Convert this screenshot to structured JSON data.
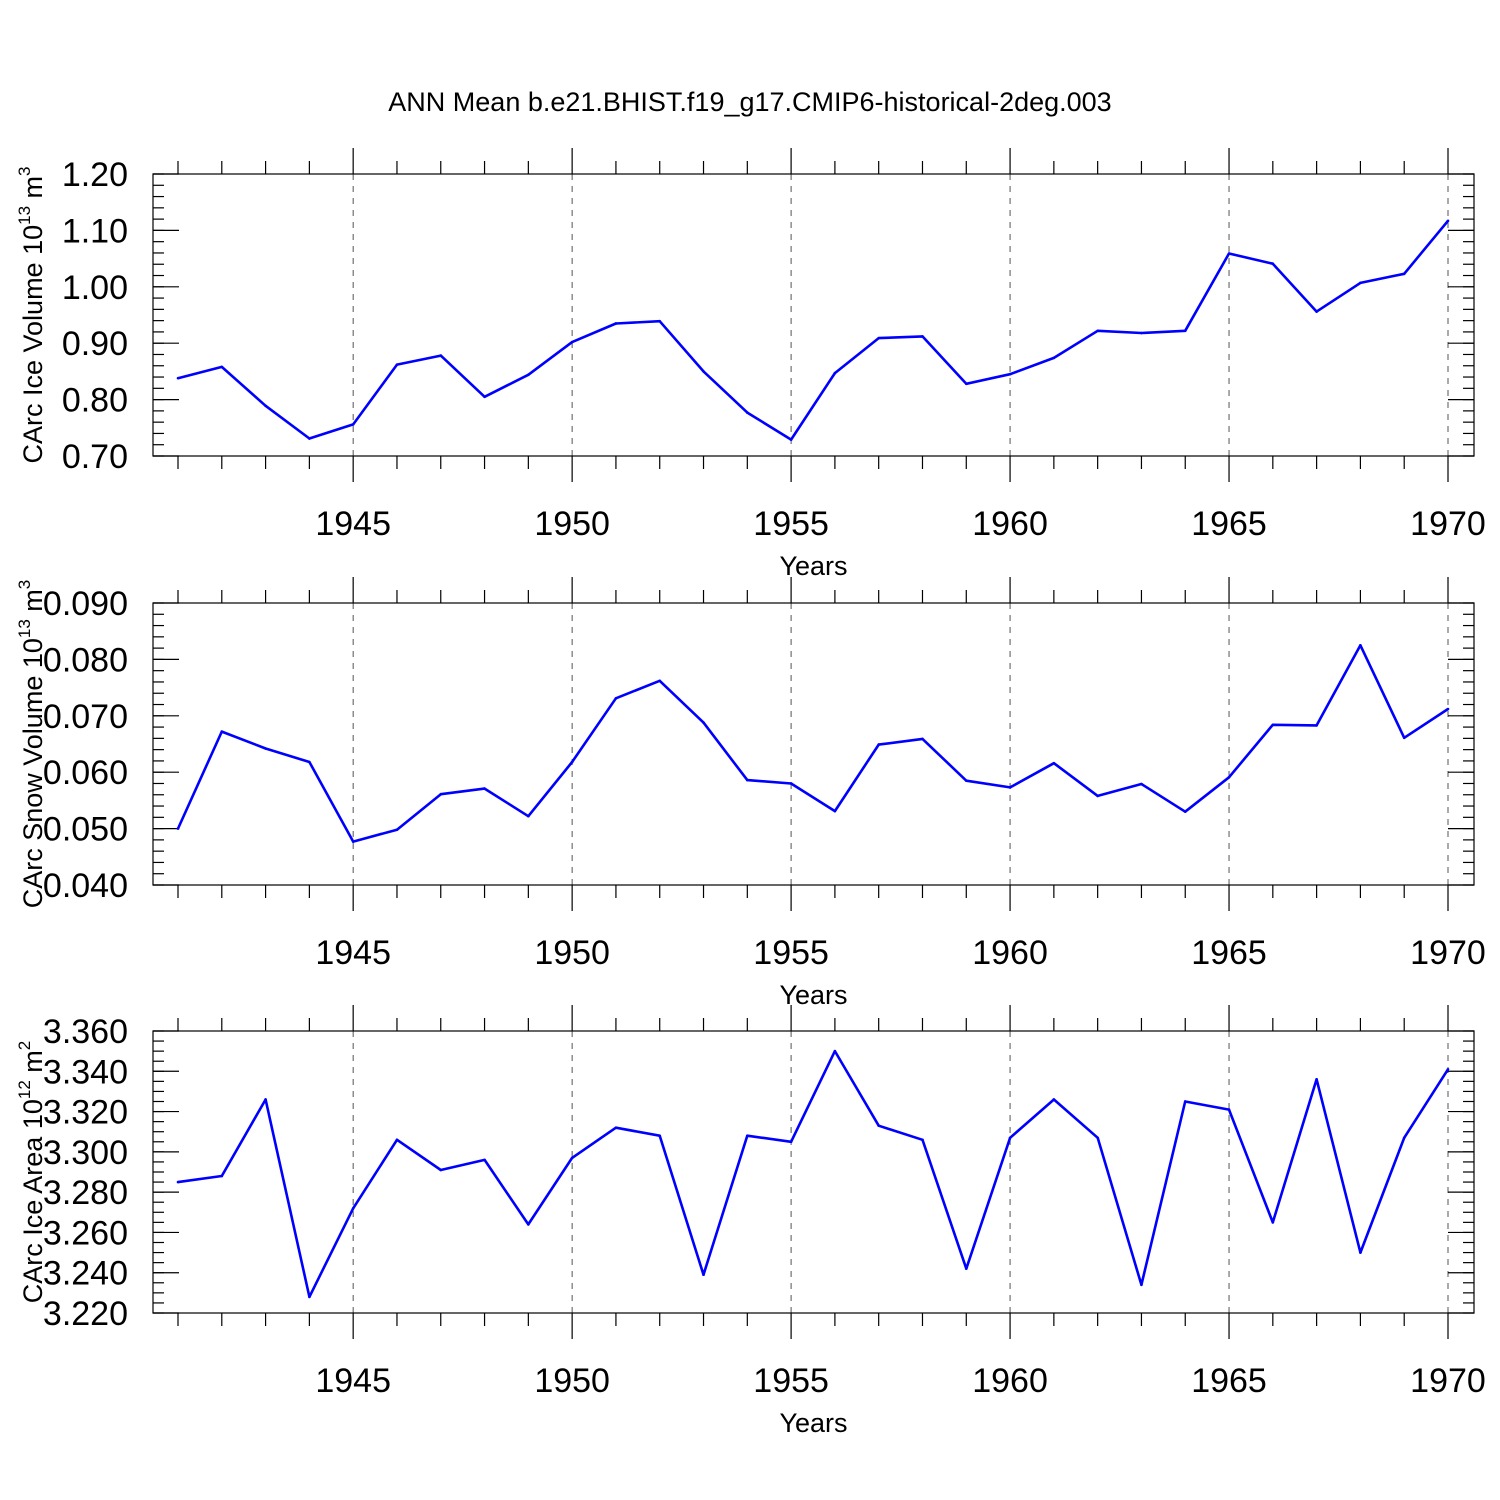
{
  "title": "ANN Mean b.e21.BHIST.f19_g17.CMIP6-historical-2deg.003",
  "line_color": "#0000ff",
  "chart_data": [
    {
      "type": "line",
      "ylabel": "CArc Ice Volume 10",
      "ylabel_exp": "13",
      "ylabel_unit": " m",
      "ylabel_unit_exp": "3",
      "xlabel": "Years",
      "xlim": [
        1941,
        1970
      ],
      "ylim": [
        0.7,
        1.2
      ],
      "yticks": [
        0.7,
        0.8,
        0.9,
        1.0,
        1.1,
        1.2
      ],
      "ytick_labels": [
        "0.70",
        "0.80",
        "0.90",
        "1.00",
        "1.10",
        "1.20"
      ],
      "xticks": [
        1945,
        1950,
        1955,
        1960,
        1965,
        1970
      ],
      "xtick_labels": [
        "1945",
        "1950",
        "1955",
        "1960",
        "1965",
        "1970"
      ],
      "y_minor_step": 0.02,
      "grid_x": true,
      "x": [
        1941,
        1942,
        1943,
        1944,
        1945,
        1946,
        1947,
        1948,
        1949,
        1950,
        1951,
        1952,
        1953,
        1954,
        1955,
        1956,
        1957,
        1958,
        1959,
        1960,
        1961,
        1962,
        1963,
        1964,
        1965,
        1966,
        1967,
        1968,
        1969,
        1970
      ],
      "values": [
        0.838,
        0.858,
        0.789,
        0.731,
        0.756,
        0.862,
        0.878,
        0.805,
        0.844,
        0.902,
        0.935,
        0.939,
        0.85,
        0.777,
        0.729,
        0.847,
        0.909,
        0.912,
        0.828,
        0.845,
        0.874,
        0.922,
        0.918,
        0.922,
        1.059,
        1.041,
        0.956,
        1.007,
        1.023,
        1.117
      ]
    },
    {
      "type": "line",
      "ylabel": "CArc Snow Volume 10",
      "ylabel_exp": "13",
      "ylabel_unit": " m",
      "ylabel_unit_exp": "3",
      "xlabel": "Years",
      "xlim": [
        1941,
        1970
      ],
      "ylim": [
        0.04,
        0.09
      ],
      "yticks": [
        0.04,
        0.05,
        0.06,
        0.07,
        0.08,
        0.09
      ],
      "ytick_labels": [
        "0.040",
        "0.050",
        "0.060",
        "0.070",
        "0.080",
        "0.090"
      ],
      "xticks": [
        1945,
        1950,
        1955,
        1960,
        1965,
        1970
      ],
      "xtick_labels": [
        "1945",
        "1950",
        "1955",
        "1960",
        "1965",
        "1970"
      ],
      "y_minor_step": 0.002,
      "grid_x": true,
      "x": [
        1941,
        1942,
        1943,
        1944,
        1945,
        1946,
        1947,
        1948,
        1949,
        1950,
        1951,
        1952,
        1953,
        1954,
        1955,
        1956,
        1957,
        1958,
        1959,
        1960,
        1961,
        1962,
        1963,
        1964,
        1965,
        1966,
        1967,
        1968,
        1969,
        1970
      ],
      "values": [
        0.05,
        0.0672,
        0.0642,
        0.0618,
        0.0477,
        0.0498,
        0.0561,
        0.0571,
        0.0522,
        0.0618,
        0.0731,
        0.0762,
        0.0688,
        0.0586,
        0.058,
        0.0531,
        0.0649,
        0.0659,
        0.0585,
        0.0573,
        0.0616,
        0.0558,
        0.0579,
        0.053,
        0.0591,
        0.0684,
        0.0683,
        0.0825,
        0.0661,
        0.0712
      ]
    },
    {
      "type": "line",
      "ylabel": "CArc Ice Area 10",
      "ylabel_exp": "12",
      "ylabel_unit": " m",
      "ylabel_unit_exp": "2",
      "xlabel": "Years",
      "xlim": [
        1941,
        1970
      ],
      "ylim": [
        3.22,
        3.36
      ],
      "yticks": [
        3.22,
        3.24,
        3.26,
        3.28,
        3.3,
        3.32,
        3.34,
        3.36
      ],
      "ytick_labels": [
        "3.220",
        "3.240",
        "3.260",
        "3.280",
        "3.300",
        "3.320",
        "3.340",
        "3.360"
      ],
      "xticks": [
        1945,
        1950,
        1955,
        1960,
        1965,
        1970
      ],
      "xtick_labels": [
        "1945",
        "1950",
        "1955",
        "1960",
        "1965",
        "1970"
      ],
      "y_minor_step": 0.005,
      "grid_x": true,
      "x": [
        1941,
        1942,
        1943,
        1944,
        1945,
        1946,
        1947,
        1948,
        1949,
        1950,
        1951,
        1952,
        1953,
        1954,
        1955,
        1956,
        1957,
        1958,
        1959,
        1960,
        1961,
        1962,
        1963,
        1964,
        1965,
        1966,
        1967,
        1968,
        1969,
        1970
      ],
      "values": [
        3.285,
        3.288,
        3.326,
        3.228,
        3.272,
        3.306,
        3.291,
        3.296,
        3.264,
        3.297,
        3.312,
        3.308,
        3.239,
        3.308,
        3.305,
        3.35,
        3.313,
        3.306,
        3.242,
        3.307,
        3.326,
        3.307,
        3.234,
        3.325,
        3.321,
        3.265,
        3.336,
        3.25,
        3.307,
        3.341
      ]
    }
  ]
}
